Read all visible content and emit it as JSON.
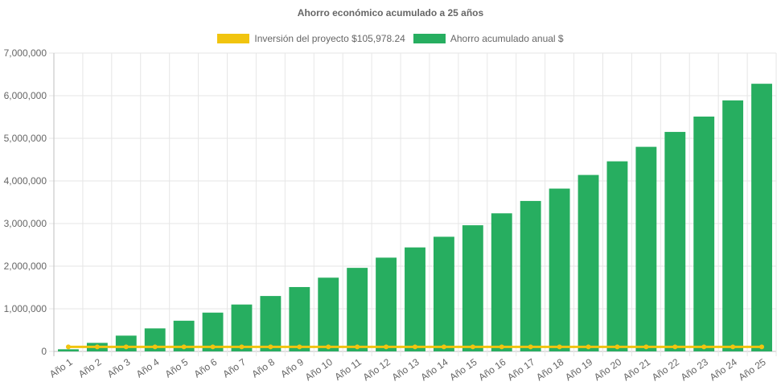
{
  "chart_data": {
    "type": "bar",
    "title": "Ahorro económico acumulado a 25 años",
    "categories": [
      "Año 1",
      "Año 2",
      "Año 3",
      "Año 4",
      "Año 5",
      "Año 6",
      "Año 7",
      "Año 8",
      "Año 9",
      "Año 10",
      "Año 11",
      "Año 12",
      "Año 13",
      "Año 14",
      "Año 15",
      "Año 16",
      "Año 17",
      "Año 18",
      "Año 19",
      "Año 20",
      "Año 21",
      "Año 22",
      "Año 23",
      "Año 24",
      "Año 25"
    ],
    "series": [
      {
        "name": "Inversión del proyecto $105,978.24",
        "type": "line",
        "color": "#f1c40f",
        "values": [
          105978.24,
          105978.24,
          105978.24,
          105978.24,
          105978.24,
          105978.24,
          105978.24,
          105978.24,
          105978.24,
          105978.24,
          105978.24,
          105978.24,
          105978.24,
          105978.24,
          105978.24,
          105978.24,
          105978.24,
          105978.24,
          105978.24,
          105978.24,
          105978.24,
          105978.24,
          105978.24,
          105978.24,
          105978.24
        ]
      },
      {
        "name": "Ahorro acumulado anual $",
        "type": "bar",
        "color": "#27ae60",
        "values": [
          50000,
          200000,
          370000,
          540000,
          720000,
          910000,
          1100000,
          1300000,
          1510000,
          1730000,
          1960000,
          2200000,
          2440000,
          2690000,
          2960000,
          3240000,
          3530000,
          3820000,
          4140000,
          4460000,
          4800000,
          5150000,
          5510000,
          5890000,
          6280000
        ]
      }
    ],
    "y_ticks": [
      "0",
      "1,000,000",
      "2,000,000",
      "3,000,000",
      "4,000,000",
      "5,000,000",
      "6,000,000",
      "7,000,000"
    ],
    "ylim": [
      0,
      7000000
    ],
    "grid": true,
    "legend_position": "top"
  }
}
